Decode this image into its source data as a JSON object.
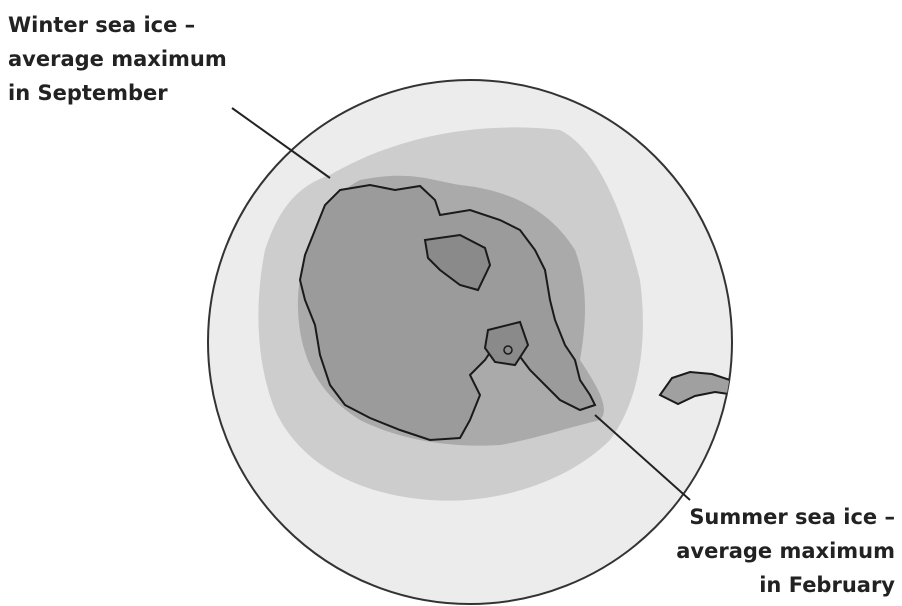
{
  "labels": [
    {
      "lines": [
        "Winter sea ice –",
        "average maximum",
        "in September"
      ]
    },
    {
      "lines": [
        "Summer sea ice –",
        "average maximum",
        "in February"
      ]
    }
  ]
}
